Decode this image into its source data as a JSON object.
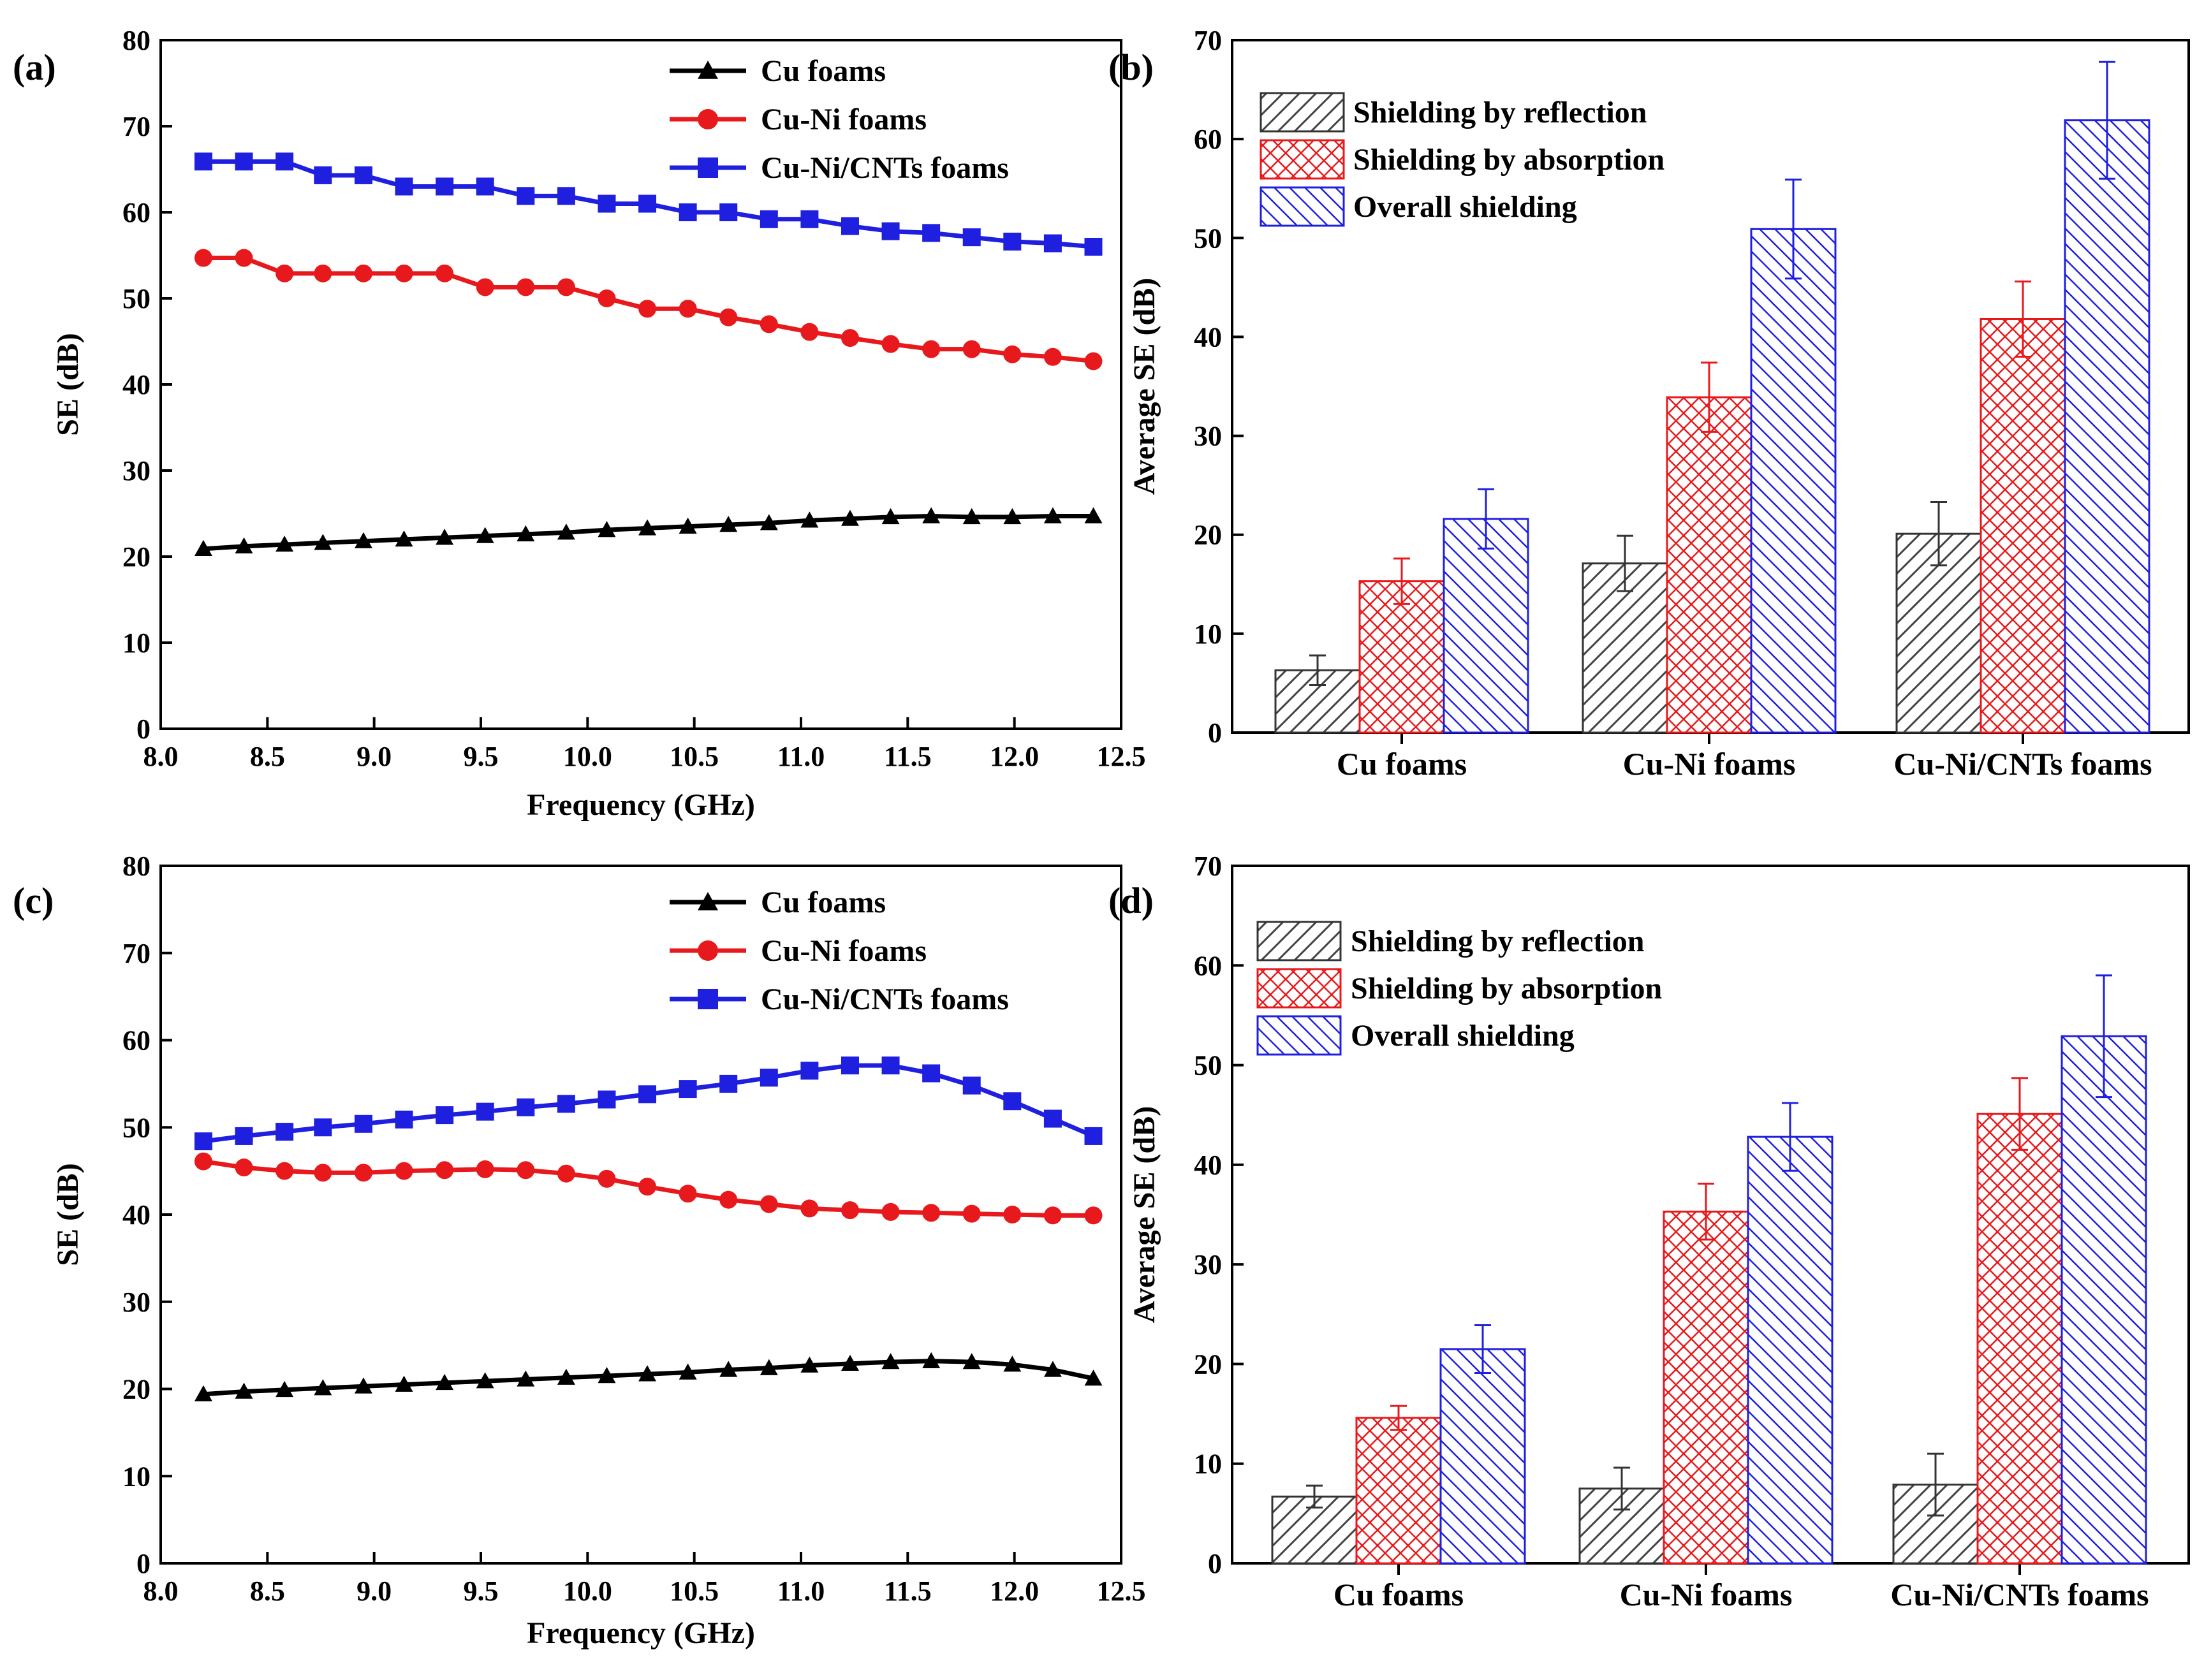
{
  "chart_data": [
    {
      "panel": "(a)",
      "type": "line",
      "xlabel": "Frequency (GHz)",
      "ylabel": "SE (dB)",
      "xlim": [
        8.0,
        12.5
      ],
      "ylim": [
        0,
        80
      ],
      "xticks": [
        "8.0",
        "8.5",
        "9.0",
        "9.5",
        "10.0",
        "10.5",
        "11.0",
        "11.5",
        "12.0",
        "12.5"
      ],
      "yticks": [
        "0",
        "10",
        "20",
        "30",
        "40",
        "50",
        "60",
        "70",
        "80"
      ],
      "legend": "top-right",
      "x": [
        8.2,
        8.39,
        8.58,
        8.76,
        8.95,
        9.14,
        9.33,
        9.52,
        9.71,
        9.9,
        10.09,
        10.28,
        10.47,
        10.66,
        10.85,
        11.04,
        11.23,
        11.42,
        11.61,
        11.8,
        11.99,
        12.18,
        12.37
      ],
      "series": [
        {
          "name": "Cu foams",
          "color": "#000000",
          "marker": "triangle",
          "values": [
            20.9,
            21.2,
            21.4,
            21.6,
            21.8,
            22.0,
            22.2,
            22.4,
            22.6,
            22.8,
            23.1,
            23.3,
            23.5,
            23.7,
            23.9,
            24.2,
            24.4,
            24.6,
            24.7,
            24.6,
            24.6,
            24.7,
            24.7
          ]
        },
        {
          "name": "Cu-Ni foams",
          "color": "#e8191c",
          "marker": "circle",
          "values": [
            54.7,
            54.7,
            52.9,
            52.9,
            52.9,
            52.9,
            52.9,
            51.3,
            51.3,
            51.3,
            50.0,
            48.8,
            48.8,
            47.8,
            47.0,
            46.1,
            45.4,
            44.7,
            44.1,
            44.1,
            43.5,
            43.2,
            42.7
          ]
        },
        {
          "name": "Cu-Ni/CNTs foams",
          "color": "#1f1fe0",
          "marker": "square",
          "values": [
            65.9,
            65.9,
            65.9,
            64.3,
            64.3,
            63.0,
            63.0,
            63.0,
            61.9,
            61.9,
            61.0,
            61.0,
            60.0,
            60.0,
            59.2,
            59.2,
            58.4,
            57.8,
            57.6,
            57.1,
            56.6,
            56.4,
            56.0
          ]
        }
      ]
    },
    {
      "panel": "(b)",
      "type": "bar",
      "ylabel": "Average SE (dB)",
      "ylim": [
        0,
        70
      ],
      "yticks": [
        "0",
        "10",
        "20",
        "30",
        "40",
        "50",
        "60",
        "70"
      ],
      "legend": "top-left",
      "categories": [
        "Cu foams",
        "Cu-Ni foams",
        "Cu-Ni/CNTs foams"
      ],
      "series": [
        {
          "name": "Shielding by reflection",
          "color": "#333333",
          "pattern": "reflection",
          "values": [
            6.3,
            17.1,
            20.1
          ],
          "errors": [
            1.5,
            2.8,
            3.2
          ]
        },
        {
          "name": "Shielding by absorption",
          "color": "#e8191c",
          "pattern": "absorption",
          "values": [
            15.3,
            33.9,
            41.8
          ],
          "errors": [
            2.3,
            3.5,
            3.8
          ]
        },
        {
          "name": "Overall shielding",
          "color": "#1f1fe0",
          "pattern": "overall",
          "values": [
            21.6,
            50.9,
            61.9
          ],
          "errors": [
            3.0,
            5.0,
            5.9
          ]
        }
      ]
    },
    {
      "panel": "(c)",
      "type": "line",
      "xlabel": "Frequency (GHz)",
      "ylabel": "SE (dB)",
      "xlim": [
        8.0,
        12.5
      ],
      "ylim": [
        0,
        80
      ],
      "xticks": [
        "8.0",
        "8.5",
        "9.0",
        "9.5",
        "10.0",
        "10.5",
        "11.0",
        "11.5",
        "12.0",
        "12.5"
      ],
      "yticks": [
        "0",
        "10",
        "20",
        "30",
        "40",
        "50",
        "60",
        "70",
        "80"
      ],
      "legend": "top-right",
      "x": [
        8.2,
        8.39,
        8.58,
        8.76,
        8.95,
        9.14,
        9.33,
        9.52,
        9.71,
        9.9,
        10.09,
        10.28,
        10.47,
        10.66,
        10.85,
        11.04,
        11.23,
        11.42,
        11.61,
        11.8,
        11.99,
        12.18,
        12.37
      ],
      "series": [
        {
          "name": "Cu foams",
          "color": "#000000",
          "marker": "triangle",
          "values": [
            19.4,
            19.7,
            19.9,
            20.1,
            20.3,
            20.5,
            20.7,
            20.9,
            21.1,
            21.3,
            21.5,
            21.7,
            21.9,
            22.2,
            22.4,
            22.7,
            22.9,
            23.1,
            23.2,
            23.1,
            22.8,
            22.2,
            21.2
          ]
        },
        {
          "name": "Cu-Ni foams",
          "color": "#e8191c",
          "marker": "circle",
          "values": [
            46.1,
            45.4,
            45.0,
            44.8,
            44.8,
            45.0,
            45.1,
            45.2,
            45.1,
            44.7,
            44.1,
            43.2,
            42.4,
            41.7,
            41.2,
            40.7,
            40.5,
            40.3,
            40.2,
            40.1,
            40.0,
            39.9,
            39.9
          ]
        },
        {
          "name": "Cu-Ni/CNTs foams",
          "color": "#1f1fe0",
          "marker": "square",
          "values": [
            48.4,
            49.0,
            49.5,
            50.0,
            50.4,
            50.9,
            51.4,
            51.8,
            52.3,
            52.7,
            53.2,
            53.8,
            54.4,
            55.0,
            55.7,
            56.5,
            57.1,
            57.1,
            56.2,
            54.8,
            53.0,
            51.0,
            49.0
          ]
        }
      ]
    },
    {
      "panel": "(d)",
      "type": "bar",
      "ylabel": "Average SE (dB)",
      "ylim": [
        0,
        70
      ],
      "yticks": [
        "0",
        "10",
        "20",
        "30",
        "40",
        "50",
        "60",
        "70"
      ],
      "legend": "top-left",
      "categories": [
        "Cu foams",
        "Cu-Ni foams",
        "Cu-Ni/CNTs foams"
      ],
      "series": [
        {
          "name": "Shielding by reflection",
          "color": "#333333",
          "pattern": "reflection",
          "values": [
            6.7,
            7.5,
            7.9
          ],
          "errors": [
            1.1,
            2.1,
            3.1
          ]
        },
        {
          "name": "Shielding by absorption",
          "color": "#e8191c",
          "pattern": "absorption",
          "values": [
            14.6,
            35.3,
            45.1
          ],
          "errors": [
            1.2,
            2.8,
            3.6
          ]
        },
        {
          "name": "Overall shielding",
          "color": "#1f1fe0",
          "pattern": "overall",
          "values": [
            21.5,
            42.8,
            52.9
          ],
          "errors": [
            2.4,
            3.4,
            6.1
          ]
        }
      ]
    }
  ]
}
